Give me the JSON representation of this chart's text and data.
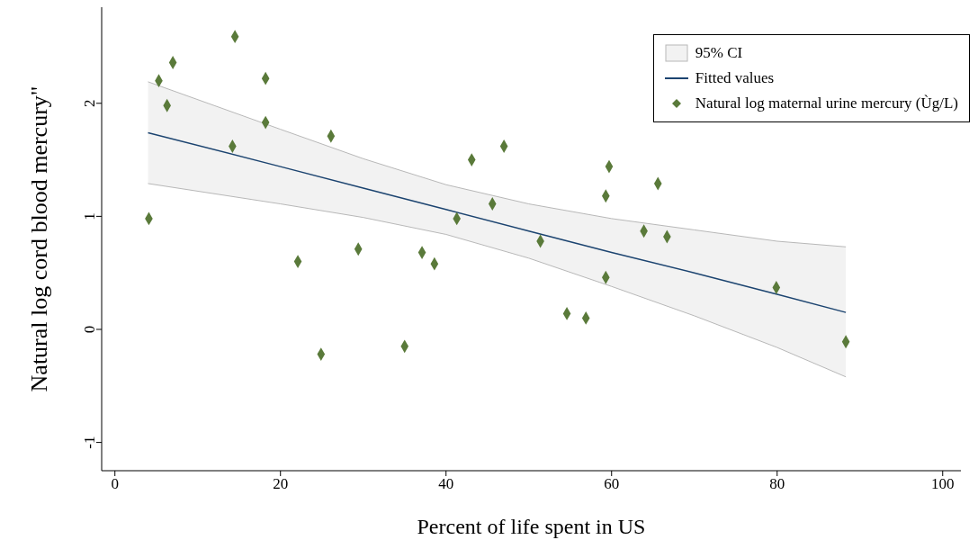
{
  "chart_data": {
    "type": "scatter",
    "xlabel": "Percent of life spent in US",
    "ylabel": "Natural log cord blood mercury\"",
    "xlim": [
      -1.6,
      102.2
    ],
    "ylim": [
      -1.25,
      2.85
    ],
    "xticks": [
      0,
      20,
      40,
      60,
      80,
      100
    ],
    "yticks": [
      -1,
      0,
      1,
      2
    ],
    "grid": false,
    "legend": "top right",
    "annotations": [
      "95% CI"
    ],
    "series": [
      {
        "name": "Fitted values",
        "type": "line",
        "marker": "none",
        "color": "#1c4470",
        "x": [
          4,
          20,
          30,
          40,
          50,
          60,
          70,
          80,
          88.3
        ],
        "values": [
          1.74,
          1.44,
          1.25,
          1.06,
          0.87,
          0.68,
          0.5,
          0.31,
          0.15
        ],
        "lower": [
          1.29,
          1.11,
          0.99,
          0.84,
          0.63,
          0.38,
          0.12,
          -0.16,
          -0.42
        ],
        "upper": [
          2.19,
          1.77,
          1.51,
          1.28,
          1.11,
          0.98,
          0.88,
          0.78,
          0.73
        ]
      },
      {
        "type": "line",
        "marker": "none",
        "color": "#b8b8b8",
        "x": [
          4,
          20,
          30,
          40,
          50,
          60,
          70,
          80,
          88.3
        ],
        "values": [
          1.29,
          1.11,
          0.99,
          0.84,
          0.63,
          0.38,
          0.12,
          -0.16,
          -0.42
        ]
      },
      {
        "type": "line",
        "marker": "none",
        "color": "#b8b8b8",
        "x": [
          4,
          20,
          30,
          40,
          50,
          60,
          70,
          80,
          88.3
        ],
        "values": [
          2.19,
          1.77,
          1.51,
          1.28,
          1.11,
          0.98,
          0.88,
          0.78,
          0.73
        ]
      },
      {
        "name": "Natural log maternal urine mercury (Ùg/L)",
        "marker": "diamond",
        "color": "#5a7a3a",
        "x": [
          4.1,
          5.3,
          6.3,
          7.0,
          14.2,
          14.5,
          18.2,
          18.2,
          22.1,
          24.9,
          26.1,
          29.4,
          35.0,
          37.1,
          38.6,
          41.3,
          43.1,
          45.6,
          47.0,
          51.4,
          54.6,
          56.9,
          59.3,
          59.7,
          59.3,
          63.9,
          65.6,
          66.7,
          79.9,
          88.3
        ],
        "values": [
          0.98,
          2.2,
          1.98,
          2.36,
          1.62,
          2.59,
          2.22,
          1.83,
          0.6,
          -0.22,
          1.71,
          0.71,
          -0.15,
          0.68,
          0.58,
          0.98,
          1.5,
          1.11,
          1.62,
          0.78,
          0.14,
          0.1,
          1.18,
          1.44,
          0.46,
          0.87,
          1.29,
          0.82,
          0.37,
          -0.11
        ]
      }
    ]
  }
}
